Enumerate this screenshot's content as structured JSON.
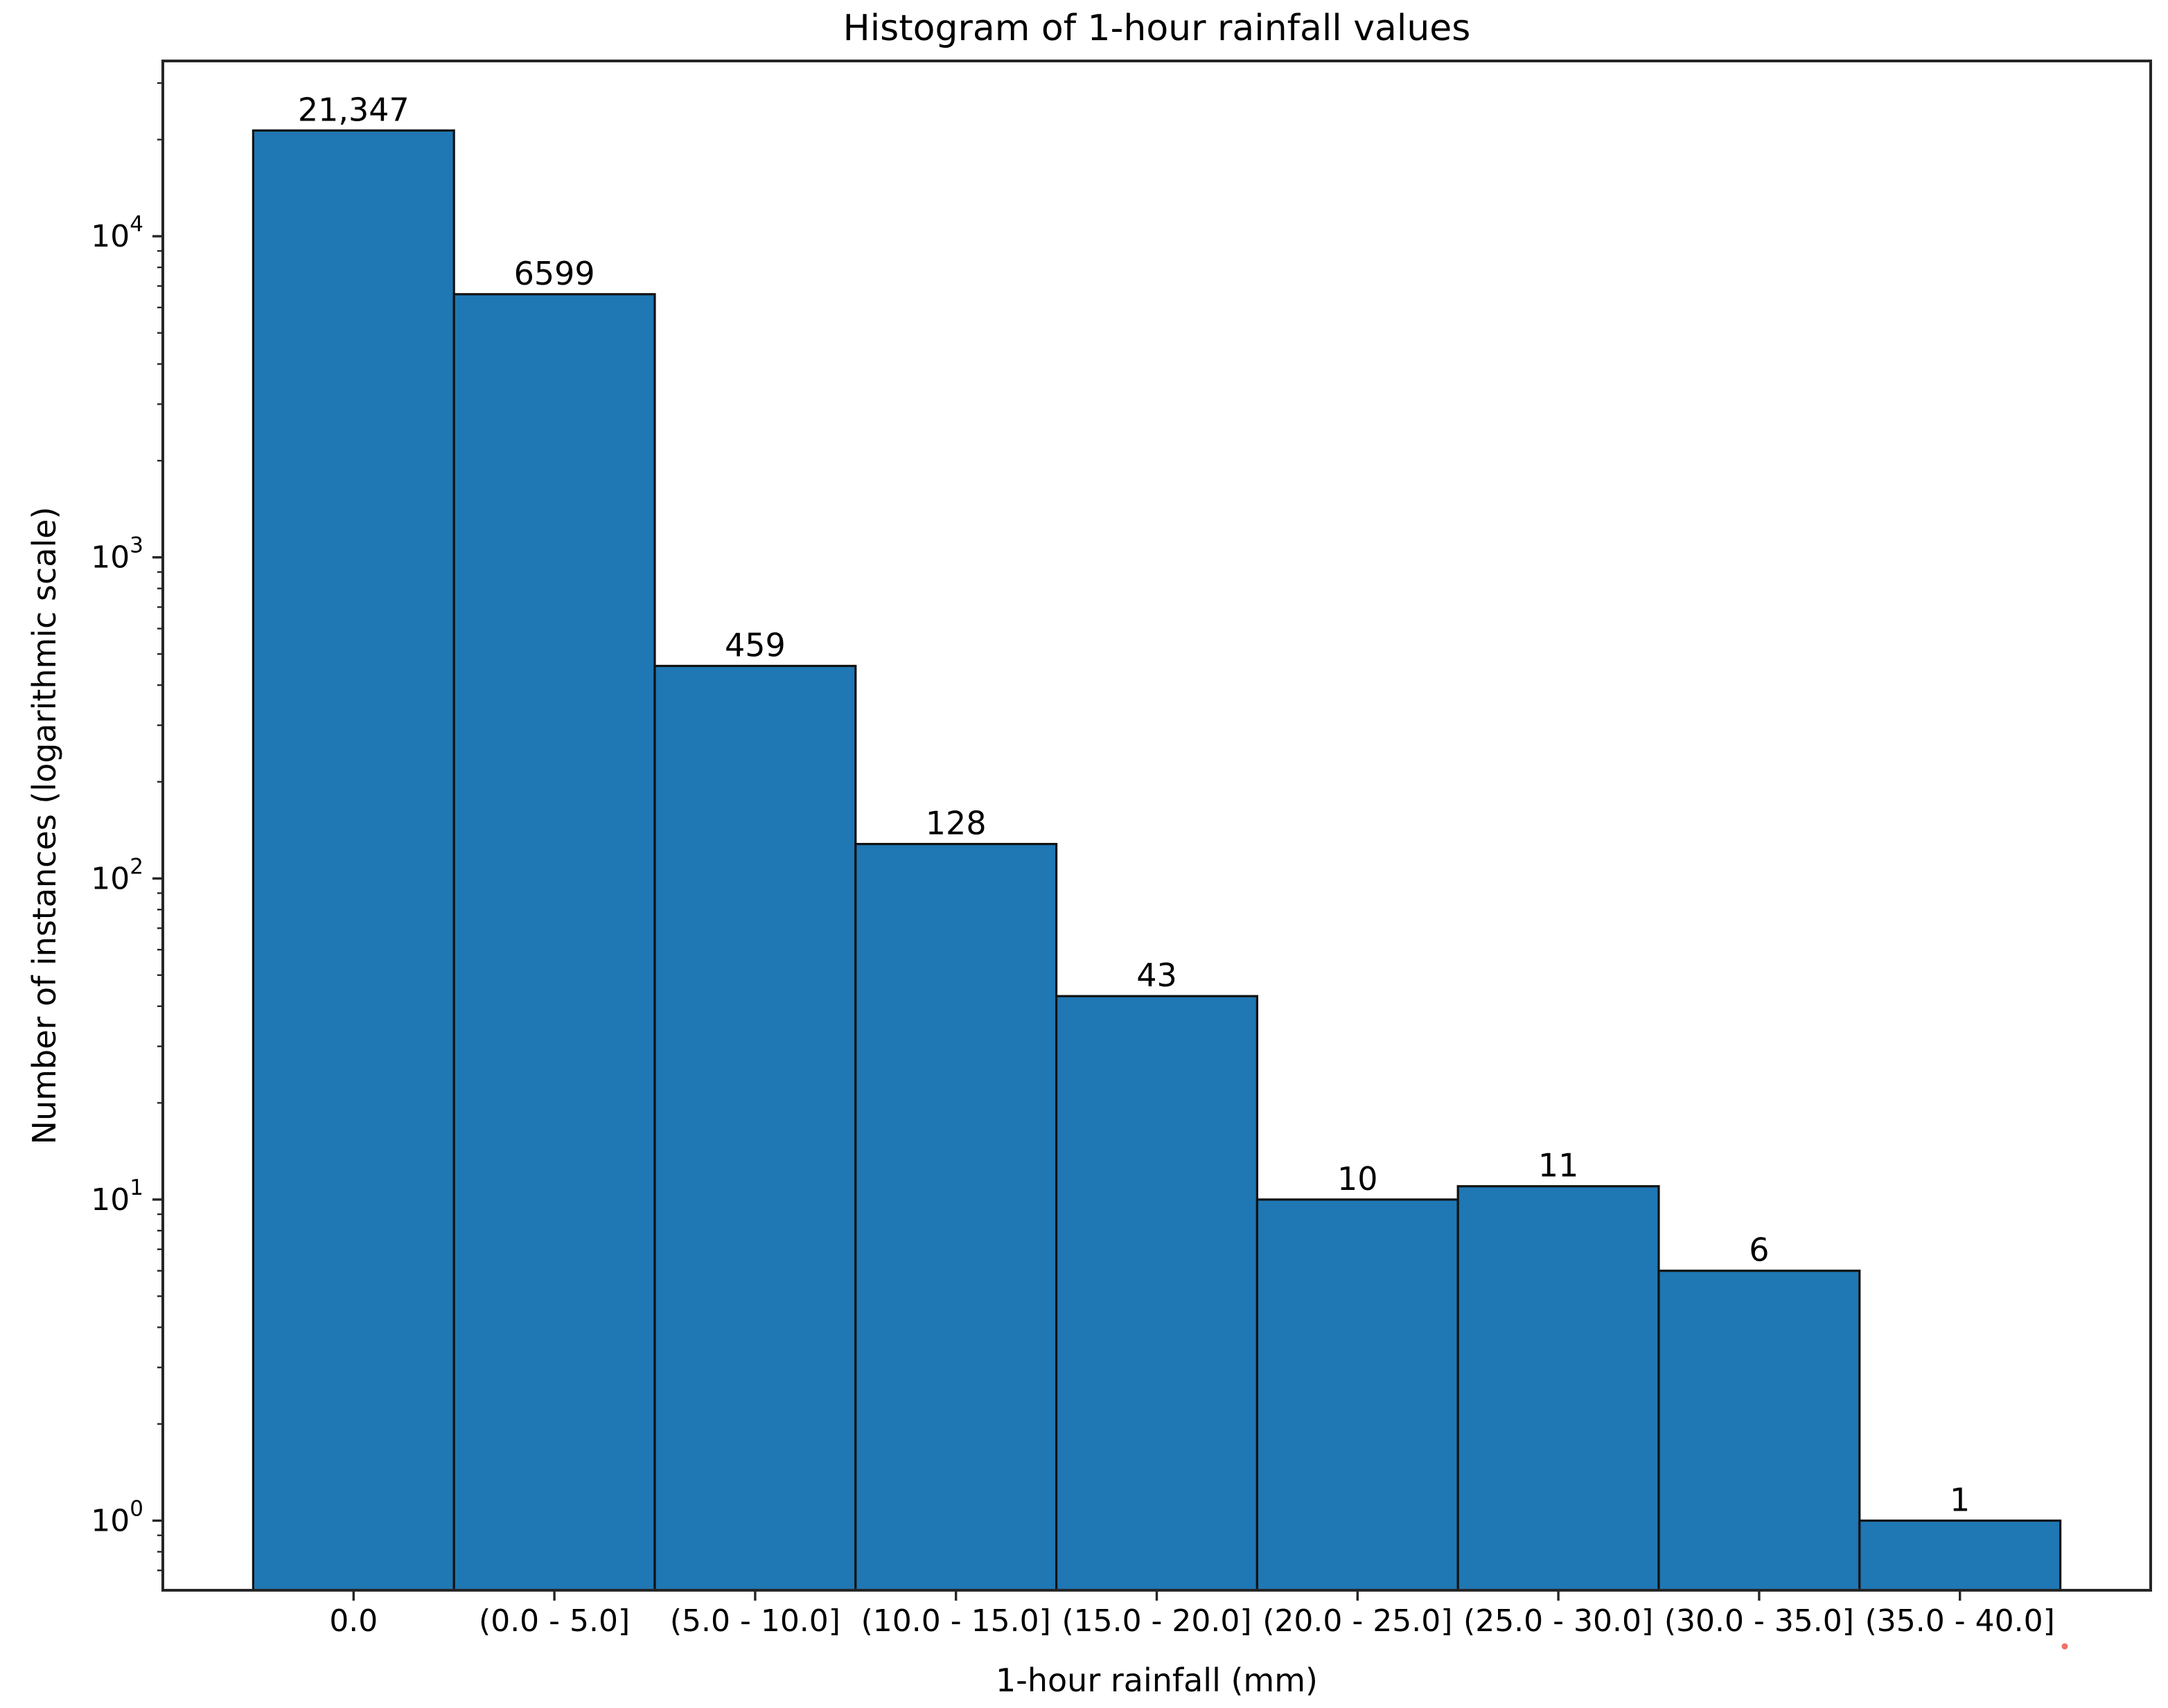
{
  "chart_data": {
    "type": "bar",
    "title": "Histogram of 1-hour rainfall values",
    "xlabel": "1-hour rainfall (mm)",
    "ylabel": "Number of instances (logarithmic scale)",
    "categories": [
      "0.0",
      "(0.0 - 5.0]",
      "(5.0 - 10.0]",
      "(10.0 - 15.0]",
      "(15.0 - 20.0]",
      "(20.0 - 25.0]",
      "(25.0 - 30.0]",
      "(30.0 - 35.0]",
      "(35.0 - 40.0]"
    ],
    "values": [
      21347,
      6599,
      459,
      128,
      43,
      10,
      11,
      6,
      1
    ],
    "value_labels": [
      "21,347",
      "6599",
      "459",
      "128",
      "43",
      "10",
      "11",
      "6",
      "1"
    ],
    "yscale": "log",
    "ylim": [
      0.607,
      35150
    ],
    "y_ticks": [
      {
        "base": "10",
        "exp": "0"
      },
      {
        "base": "10",
        "exp": "1"
      },
      {
        "base": "10",
        "exp": "2"
      },
      {
        "base": "10",
        "exp": "3"
      },
      {
        "base": "10",
        "exp": "4"
      }
    ],
    "grid": false,
    "legend": null,
    "bar_color": "#1f77b4",
    "bar_edge_color": "#121212",
    "text_color": "#000000"
  }
}
